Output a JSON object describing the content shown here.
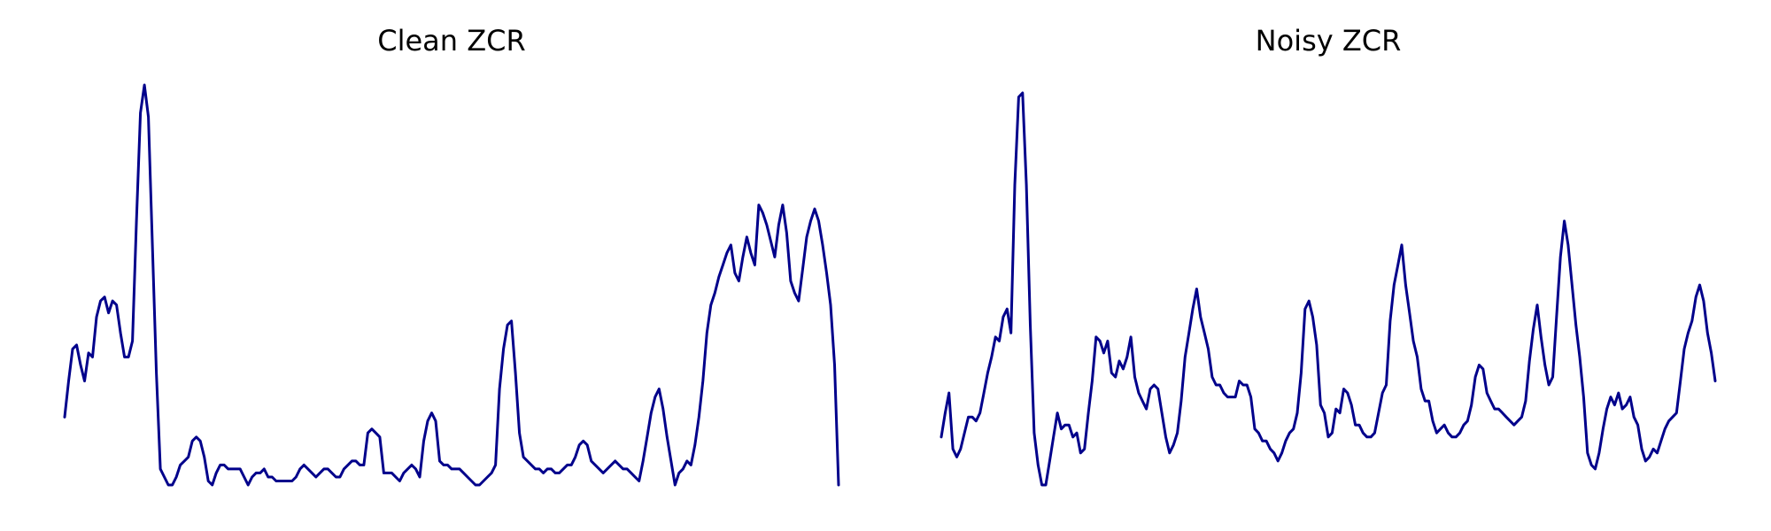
{
  "line_color": "#00008b",
  "chart_data": [
    {
      "type": "line",
      "title": "Clean ZCR",
      "xlabel": "",
      "ylabel": "",
      "axes_visible": false,
      "grid": false,
      "ylim": [
        0,
        1
      ],
      "values": [
        0.17,
        0.26,
        0.34,
        0.35,
        0.3,
        0.26,
        0.33,
        0.32,
        0.42,
        0.46,
        0.47,
        0.43,
        0.46,
        0.45,
        0.38,
        0.32,
        0.32,
        0.36,
        0.66,
        0.93,
        1.0,
        0.92,
        0.6,
        0.28,
        0.04,
        0.02,
        0.0,
        0.0,
        0.02,
        0.05,
        0.06,
        0.07,
        0.11,
        0.12,
        0.11,
        0.07,
        0.01,
        0.0,
        0.03,
        0.05,
        0.05,
        0.04,
        0.04,
        0.04,
        0.04,
        0.02,
        0.0,
        0.02,
        0.03,
        0.03,
        0.04,
        0.02,
        0.02,
        0.01,
        0.01,
        0.01,
        0.01,
        0.01,
        0.02,
        0.04,
        0.05,
        0.04,
        0.03,
        0.02,
        0.03,
        0.04,
        0.04,
        0.03,
        0.02,
        0.02,
        0.04,
        0.05,
        0.06,
        0.06,
        0.05,
        0.05,
        0.13,
        0.14,
        0.13,
        0.12,
        0.03,
        0.03,
        0.03,
        0.02,
        0.01,
        0.03,
        0.04,
        0.05,
        0.04,
        0.02,
        0.11,
        0.16,
        0.18,
        0.16,
        0.06,
        0.05,
        0.05,
        0.04,
        0.04,
        0.04,
        0.03,
        0.02,
        0.01,
        0.0,
        0.0,
        0.01,
        0.02,
        0.03,
        0.05,
        0.24,
        0.34,
        0.4,
        0.41,
        0.28,
        0.13,
        0.07,
        0.06,
        0.05,
        0.04,
        0.04,
        0.03,
        0.04,
        0.04,
        0.03,
        0.03,
        0.04,
        0.05,
        0.05,
        0.07,
        0.1,
        0.11,
        0.1,
        0.06,
        0.05,
        0.04,
        0.03,
        0.04,
        0.05,
        0.06,
        0.05,
        0.04,
        0.04,
        0.03,
        0.02,
        0.01,
        0.06,
        0.12,
        0.18,
        0.22,
        0.24,
        0.19,
        0.12,
        0.06,
        0.0,
        0.03,
        0.04,
        0.06,
        0.05,
        0.1,
        0.17,
        0.26,
        0.38,
        0.45,
        0.48,
        0.52,
        0.55,
        0.58,
        0.6,
        0.53,
        0.51,
        0.57,
        0.62,
        0.58,
        0.55,
        0.7,
        0.68,
        0.65,
        0.61,
        0.57,
        0.65,
        0.7,
        0.63,
        0.51,
        0.48,
        0.46,
        0.54,
        0.62,
        0.66,
        0.69,
        0.66,
        0.6,
        0.53,
        0.45,
        0.3,
        0.0
      ]
    },
    {
      "type": "line",
      "title": "Noisy ZCR",
      "xlabel": "",
      "ylabel": "",
      "axes_visible": false,
      "grid": false,
      "ylim": [
        0,
        1
      ],
      "values": [
        0.12,
        0.18,
        0.23,
        0.09,
        0.07,
        0.09,
        0.13,
        0.17,
        0.17,
        0.16,
        0.18,
        0.23,
        0.28,
        0.32,
        0.37,
        0.36,
        0.42,
        0.44,
        0.38,
        0.75,
        0.97,
        0.98,
        0.75,
        0.4,
        0.13,
        0.05,
        0.0,
        0.0,
        0.06,
        0.12,
        0.18,
        0.14,
        0.15,
        0.15,
        0.12,
        0.13,
        0.08,
        0.09,
        0.18,
        0.26,
        0.37,
        0.36,
        0.33,
        0.36,
        0.28,
        0.27,
        0.31,
        0.29,
        0.32,
        0.37,
        0.27,
        0.23,
        0.21,
        0.19,
        0.24,
        0.25,
        0.24,
        0.18,
        0.12,
        0.08,
        0.1,
        0.13,
        0.21,
        0.32,
        0.38,
        0.44,
        0.49,
        0.42,
        0.38,
        0.34,
        0.27,
        0.25,
        0.25,
        0.23,
        0.22,
        0.22,
        0.22,
        0.26,
        0.25,
        0.25,
        0.22,
        0.14,
        0.13,
        0.11,
        0.11,
        0.09,
        0.08,
        0.06,
        0.08,
        0.11,
        0.13,
        0.14,
        0.18,
        0.28,
        0.44,
        0.46,
        0.42,
        0.35,
        0.2,
        0.18,
        0.12,
        0.13,
        0.19,
        0.18,
        0.24,
        0.23,
        0.2,
        0.15,
        0.15,
        0.13,
        0.12,
        0.12,
        0.13,
        0.18,
        0.23,
        0.25,
        0.41,
        0.5,
        0.55,
        0.6,
        0.5,
        0.43,
        0.36,
        0.32,
        0.24,
        0.21,
        0.21,
        0.16,
        0.13,
        0.14,
        0.15,
        0.13,
        0.12,
        0.12,
        0.13,
        0.15,
        0.16,
        0.2,
        0.27,
        0.3,
        0.29,
        0.23,
        0.21,
        0.19,
        0.19,
        0.18,
        0.17,
        0.16,
        0.15,
        0.16,
        0.17,
        0.21,
        0.31,
        0.39,
        0.45,
        0.37,
        0.3,
        0.25,
        0.27,
        0.42,
        0.57,
        0.66,
        0.6,
        0.5,
        0.4,
        0.32,
        0.22,
        0.08,
        0.05,
        0.04,
        0.08,
        0.14,
        0.19,
        0.22,
        0.2,
        0.23,
        0.19,
        0.2,
        0.22,
        0.17,
        0.15,
        0.09,
        0.06,
        0.07,
        0.09,
        0.08,
        0.11,
        0.14,
        0.16,
        0.17,
        0.18,
        0.26,
        0.34,
        0.38,
        0.41,
        0.47,
        0.5,
        0.46,
        0.38,
        0.33,
        0.26
      ]
    }
  ]
}
